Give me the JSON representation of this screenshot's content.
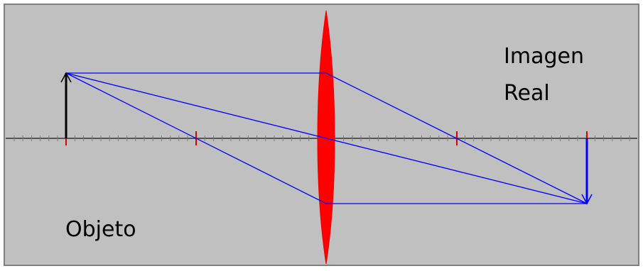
{
  "labels": {
    "image_line1": "Imagen",
    "image_line2": "Real",
    "object": "Objeto"
  },
  "colors": {
    "background": "#c0c0c0",
    "frame": "#7f7f7f",
    "axis": "#333333",
    "ray": "#0000ff",
    "lens": "#ff0000",
    "focal_marks": "#dd0000",
    "object_arrow": "#000000",
    "image_arrow": "#0000ff"
  },
  "diagram": {
    "type": "converging-lens ray diagram",
    "object_orientation": "upright",
    "image_orientation": "inverted",
    "ray_count": 3
  }
}
